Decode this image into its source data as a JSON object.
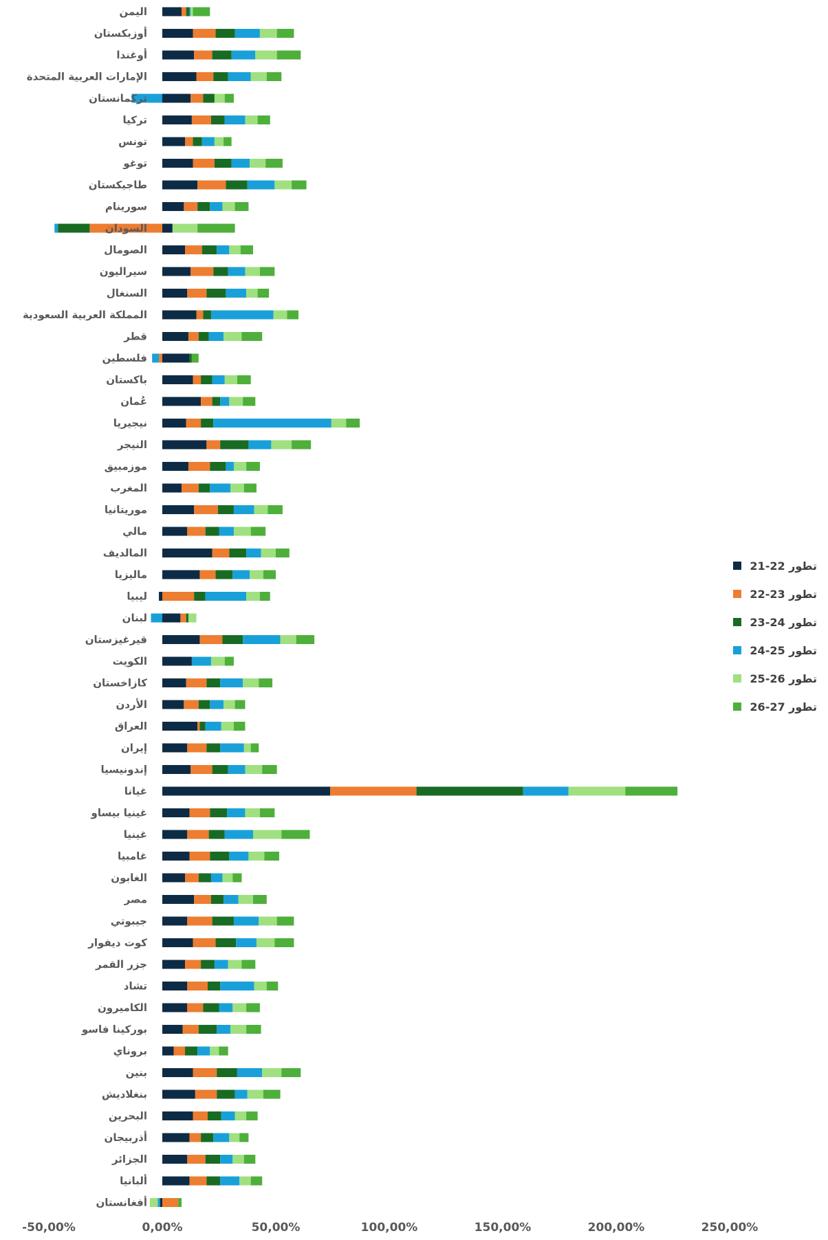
{
  "chart_data": {
    "type": "bar",
    "orientation": "horizontal",
    "stacked": true,
    "grid": false,
    "legend_position": "right",
    "xlim": [
      -50,
      250
    ],
    "x_ticks": [
      -50,
      0,
      50,
      100,
      150,
      200,
      250
    ],
    "x_tick_labels": [
      "-50,00%",
      "0,00%",
      "50,00%",
      "100,00%",
      "150,00%",
      "200,00%",
      "250,00%"
    ],
    "categories": [
      "اليمن",
      "أوزبكستان",
      "أوغندا",
      "الإمارات العربية المتحدة",
      "تركمانستان",
      "تركيا",
      "تونس",
      "توغو",
      "طاجيكستان",
      "سورينام",
      "السودان",
      "الصومال",
      "سيراليون",
      "السنغال",
      "المملكة العربية السعودية",
      "قطر",
      "فلسطين",
      "باكستان",
      "عُمان",
      "نيجيريا",
      "النيجر",
      "موزمبيق",
      "المغرب",
      "موريتانيا",
      "مالي",
      "المالديف",
      "ماليزيا",
      "ليبيا",
      "لبنان",
      "قيرغيزستان",
      "الكويت",
      "كازاخستان",
      "الأردن",
      "العراق",
      "إيران",
      "إندونيسيا",
      "غيانا",
      "غينيا بيساو",
      "غينيا",
      "غامبيا",
      "الغابون",
      "مصر",
      "جيبوتي",
      "كوت ديفوار",
      "جزر القمر",
      "تشاد",
      "الكاميرون",
      "بوركينا فاسو",
      "بروناي",
      "بنين",
      "بنغلاديش",
      "البحرين",
      "أذربيجان",
      "الجزائر",
      "ألبانيا",
      "أفغانستان"
    ],
    "series": [
      {
        "name": "تطور 22-21",
        "color": "#0d2b45",
        "values": [
          8.5,
          13.5,
          14,
          15,
          12.5,
          13,
          10,
          13.5,
          15.5,
          9.5,
          4.5,
          10,
          12.5,
          11,
          15,
          11.5,
          12,
          13.5,
          17,
          10.5,
          19.5,
          11.5,
          8.5,
          14,
          11,
          22,
          16.5,
          -1.5,
          8,
          16.5,
          13,
          10.5,
          9.5,
          15.5,
          11,
          12.5,
          74,
          12,
          11,
          12,
          10,
          14,
          11,
          13.5,
          10,
          11,
          11,
          9,
          5,
          13.5,
          14.5,
          13.5,
          12,
          11,
          12,
          -1
        ]
      },
      {
        "name": "تطور 23-22",
        "color": "#ed7d31",
        "values": [
          2,
          10,
          8,
          7.5,
          5.5,
          8.5,
          3.5,
          9.5,
          12.5,
          6,
          -32,
          7.5,
          10,
          8.5,
          3,
          4.5,
          -1.5,
          3.5,
          5,
          6.5,
          6,
          9.5,
          7.5,
          10.5,
          8,
          7.5,
          7,
          14,
          2.5,
          10,
          0,
          9,
          6.5,
          1,
          8.5,
          9.5,
          38,
          9,
          9.5,
          9,
          6,
          7.5,
          11,
          10,
          7,
          9,
          7,
          7,
          5,
          10.5,
          9.5,
          6.5,
          5,
          8,
          7.5,
          7
        ]
      },
      {
        "name": "تطور 24-23",
        "color": "#196b24",
        "values": [
          1.5,
          8.5,
          8.5,
          6.5,
          5,
          6,
          4,
          7.5,
          9.5,
          5.5,
          -14,
          6.5,
          6.5,
          8.5,
          3.5,
          4.5,
          1,
          5,
          3.5,
          5.5,
          12.5,
          7,
          5,
          7,
          6,
          7.5,
          7.5,
          5,
          1,
          9,
          0,
          6,
          5,
          2.5,
          6,
          7,
          47,
          7.5,
          7,
          8.5,
          5.5,
          5.5,
          9.5,
          9,
          6,
          5.5,
          7,
          8,
          5.5,
          9,
          8,
          6,
          5.5,
          6.5,
          6,
          0
        ]
      },
      {
        "name": "تطور 25-24",
        "color": "#1aa0d9",
        "values": [
          0.5,
          11,
          10.5,
          10,
          -13.5,
          9,
          5.5,
          8,
          12,
          5.5,
          -1.5,
          5.5,
          7.5,
          9,
          27.5,
          6.5,
          -3,
          5.5,
          4,
          52,
          10,
          3.5,
          9,
          9,
          6.5,
          6.5,
          7.5,
          18,
          -5,
          16.5,
          8.5,
          10,
          6,
          7,
          10.5,
          7.5,
          20,
          8,
          12.5,
          8.5,
          5,
          6.5,
          11,
          9,
          6,
          15,
          6,
          6,
          5.5,
          11,
          5.5,
          6,
          7,
          5.5,
          8.5,
          -1
        ]
      },
      {
        "name": "تطور 26-25",
        "color": "#a0e080",
        "values": [
          1,
          7.5,
          9.5,
          7,
          4.5,
          5.5,
          4,
          7,
          7.5,
          5.5,
          11,
          5,
          6.5,
          5,
          6,
          8,
          0,
          5.5,
          6,
          6.5,
          9,
          5.5,
          6,
          6,
          7.5,
          6.5,
          6,
          6,
          3.5,
          7,
          6,
          7,
          5,
          5.5,
          3,
          7.5,
          25,
          6.5,
          12.5,
          7,
          4.5,
          6.5,
          8,
          8,
          6,
          5.5,
          6,
          7,
          4,
          8.5,
          7,
          5,
          4.5,
          5,
          5,
          -3.5
        ]
      },
      {
        "name": "تطور 27-26",
        "color": "#4eaf3b",
        "values": [
          7.5,
          7.5,
          10.5,
          6.5,
          4,
          5.5,
          3.5,
          7.5,
          6.5,
          6,
          16.5,
          5.5,
          6.5,
          5,
          5,
          9,
          3,
          6,
          5.5,
          6,
          8.5,
          6,
          5.5,
          6.5,
          6.5,
          6,
          5.5,
          4.5,
          0,
          8,
          4,
          6,
          4.5,
          5,
          3.5,
          6.5,
          23,
          6.5,
          12.5,
          6.5,
          4,
          6,
          7.5,
          8.5,
          6,
          5,
          6,
          6.5,
          4,
          8.5,
          7.5,
          5,
          4,
          5,
          5,
          1.5
        ]
      }
    ]
  }
}
